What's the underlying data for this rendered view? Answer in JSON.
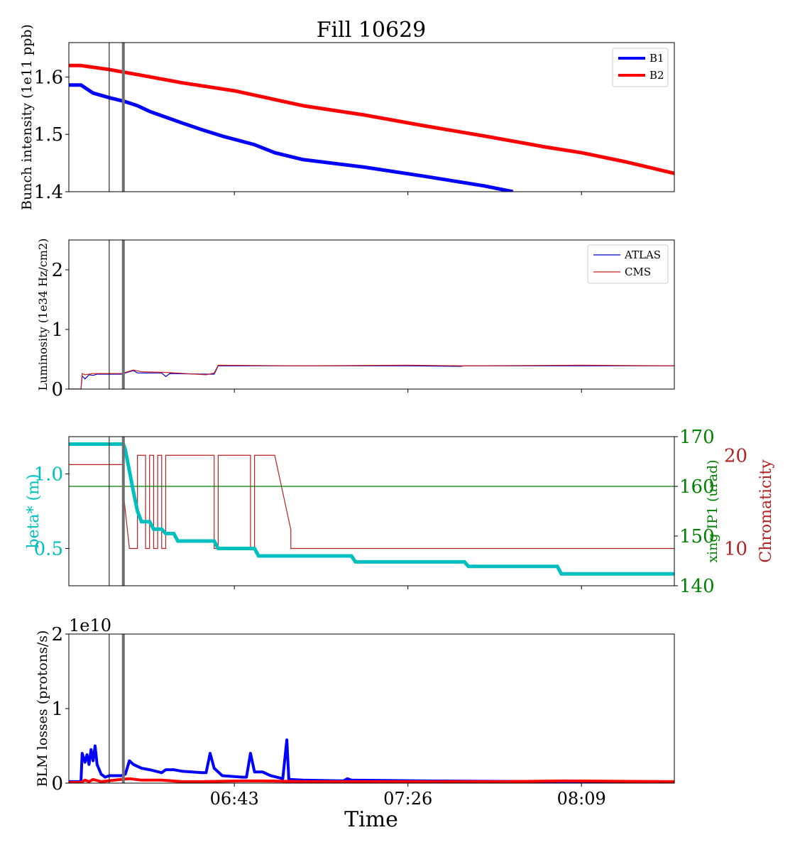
{
  "figure_title": "Fill 10629",
  "x_axis": {
    "label": "Time",
    "ticks": [
      "06:43",
      "07:26",
      "08:09"
    ]
  },
  "markers": {
    "thin_line_time": "06:12",
    "thick_line_time": "06:15.5"
  },
  "colors": {
    "b1": "#0000ff",
    "b2": "#ff0000",
    "atlas": "#0000cc",
    "cms": "#cc2222",
    "beta": "#00bfbf",
    "xing": "#008000",
    "chroma": "#b22222",
    "marker_thick": "#707070"
  },
  "chart_data": [
    {
      "type": "line",
      "name": "bunch_intensity",
      "ylabel": "Bunch intensity (1e11 ppb)",
      "ylim": [
        1.4,
        1.66
      ],
      "yticks": [
        1.4,
        1.5,
        1.6
      ],
      "legend": {
        "placement": "top-right",
        "entries": [
          "B1",
          "B2"
        ]
      },
      "series": [
        {
          "name": "B1",
          "points": [
            [
              "06:02",
              1.586
            ],
            [
              "06:05",
              1.586
            ],
            [
              "06:08",
              1.572
            ],
            [
              "06:12",
              1.564
            ],
            [
              "06:16",
              1.557
            ],
            [
              "06:19",
              1.55
            ],
            [
              "06:22",
              1.54
            ],
            [
              "06:26",
              1.53
            ],
            [
              "06:30",
              1.52
            ],
            [
              "06:35",
              1.508
            ],
            [
              "06:40",
              1.497
            ],
            [
              "06:48",
              1.482
            ],
            [
              "06:53",
              1.468
            ],
            [
              "07:00",
              1.456
            ],
            [
              "07:15",
              1.443
            ],
            [
              "07:30",
              1.427
            ],
            [
              "07:45",
              1.41
            ],
            [
              "07:52",
              1.4
            ]
          ]
        },
        {
          "name": "B2",
          "points": [
            [
              "06:02",
              1.62
            ],
            [
              "06:05",
              1.62
            ],
            [
              "06:12",
              1.613
            ],
            [
              "06:20",
              1.603
            ],
            [
              "06:30",
              1.59
            ],
            [
              "06:43",
              1.576
            ],
            [
              "07:00",
              1.55
            ],
            [
              "07:15",
              1.534
            ],
            [
              "07:30",
              1.515
            ],
            [
              "07:45",
              1.497
            ],
            [
              "08:00",
              1.478
            ],
            [
              "08:09",
              1.468
            ],
            [
              "08:20",
              1.452
            ],
            [
              "08:32",
              1.432
            ]
          ]
        }
      ]
    },
    {
      "type": "line",
      "name": "luminosity",
      "ylabel": "Luminosity (1e34 Hz/cm2)",
      "ylim": [
        0,
        2.5
      ],
      "yticks": [
        0,
        1,
        2
      ],
      "legend": {
        "placement": "top-right",
        "entries": [
          "ATLAS",
          "CMS"
        ]
      },
      "series": [
        {
          "name": "ATLAS",
          "points": [
            [
              "06:02",
              0.0
            ],
            [
              "06:05",
              0.0
            ],
            [
              "06:05.3",
              0.22
            ],
            [
              "06:06",
              0.17
            ],
            [
              "06:07",
              0.24
            ],
            [
              "06:08",
              0.23
            ],
            [
              "06:09",
              0.25
            ],
            [
              "06:15",
              0.25
            ],
            [
              "06:16",
              0.27
            ],
            [
              "06:18",
              0.31
            ],
            [
              "06:19",
              0.27
            ],
            [
              "06:25",
              0.27
            ],
            [
              "06:26",
              0.21
            ],
            [
              "06:27",
              0.26
            ],
            [
              "06:36",
              0.25
            ],
            [
              "06:38",
              0.25
            ],
            [
              "06:39",
              0.39
            ],
            [
              "06:45",
              0.39
            ],
            [
              "07:00",
              0.39
            ],
            [
              "07:26",
              0.39
            ],
            [
              "07:39",
              0.38
            ],
            [
              "07:40",
              0.39
            ],
            [
              "08:09",
              0.39
            ],
            [
              "08:32",
              0.39
            ]
          ]
        },
        {
          "name": "CMS",
          "points": [
            [
              "06:02",
              0.0
            ],
            [
              "06:05",
              0.0
            ],
            [
              "06:05.3",
              0.26
            ],
            [
              "06:06",
              0.24
            ],
            [
              "06:07",
              0.25
            ],
            [
              "06:08",
              0.26
            ],
            [
              "06:15",
              0.26
            ],
            [
              "06:18",
              0.32
            ],
            [
              "06:20",
              0.29
            ],
            [
              "06:26",
              0.28
            ],
            [
              "06:36",
              0.24
            ],
            [
              "06:38",
              0.27
            ],
            [
              "06:39",
              0.4
            ],
            [
              "07:00",
              0.39
            ],
            [
              "07:26",
              0.4
            ],
            [
              "07:40",
              0.39
            ],
            [
              "08:09",
              0.4
            ],
            [
              "08:32",
              0.39
            ]
          ]
        }
      ]
    },
    {
      "type": "line",
      "name": "optics",
      "ylabel_left": "beta* (m)",
      "ylabel_right_inner": "xing IP1 (urad)",
      "ylabel_right_outer": "Chromaticity",
      "ylim_left": [
        0.25,
        1.25
      ],
      "yticks_left": [
        0.5,
        1.0
      ],
      "ylim_xing": [
        140,
        170
      ],
      "yticks_xing": [
        140,
        150,
        160,
        170
      ],
      "ylim_chroma": [
        6,
        22
      ],
      "yticks_chroma": [
        10,
        20
      ],
      "series": [
        {
          "name": "beta*",
          "axis": "left",
          "points": [
            [
              "06:02",
              1.2
            ],
            [
              "06:15.5",
              1.2
            ],
            [
              "06:16",
              1.16
            ],
            [
              "06:17",
              1.02
            ],
            [
              "06:18",
              0.88
            ],
            [
              "06:19",
              0.75
            ],
            [
              "06:20",
              0.68
            ],
            [
              "06:22",
              0.68
            ],
            [
              "06:23",
              0.63
            ],
            [
              "06:25",
              0.63
            ],
            [
              "06:26",
              0.6
            ],
            [
              "06:28",
              0.6
            ],
            [
              "06:29",
              0.55
            ],
            [
              "06:38",
              0.55
            ],
            [
              "06:39",
              0.5
            ],
            [
              "06:48",
              0.5
            ],
            [
              "06:49",
              0.45
            ],
            [
              "07:12",
              0.45
            ],
            [
              "07:13",
              0.41
            ],
            [
              "07:40",
              0.41
            ],
            [
              "07:41",
              0.38
            ],
            [
              "08:03",
              0.38
            ],
            [
              "08:04",
              0.33
            ],
            [
              "08:32",
              0.33
            ]
          ]
        },
        {
          "name": "xing IP1",
          "axis": "xing",
          "points": [
            [
              "06:02",
              160
            ],
            [
              "08:32",
              160
            ]
          ]
        },
        {
          "name": "Chromaticity",
          "axis": "chroma",
          "step": true,
          "points": [
            [
              "06:02",
              19
            ],
            [
              "06:15.5",
              19
            ],
            [
              "06:15.5",
              16
            ],
            [
              "06:17",
              10
            ],
            [
              "06:19",
              10
            ],
            [
              "06:19",
              20
            ],
            [
              "06:21",
              20
            ],
            [
              "06:21",
              10
            ],
            [
              "06:22",
              10
            ],
            [
              "06:22",
              20
            ],
            [
              "06:23",
              20
            ],
            [
              "06:23",
              10
            ],
            [
              "06:24",
              10
            ],
            [
              "06:24",
              20
            ],
            [
              "06:25",
              20
            ],
            [
              "06:25",
              10
            ],
            [
              "06:26",
              10
            ],
            [
              "06:26",
              20
            ],
            [
              "06:38",
              20
            ],
            [
              "06:38",
              10
            ],
            [
              "06:39",
              10
            ],
            [
              "06:39",
              20
            ],
            [
              "06:47",
              20
            ],
            [
              "06:47",
              10
            ],
            [
              "06:48",
              10
            ],
            [
              "06:48",
              20
            ],
            [
              "06:53",
              20
            ],
            [
              "06:54",
              18
            ],
            [
              "06:55",
              16
            ],
            [
              "06:56",
              14
            ],
            [
              "06:57",
              12
            ],
            [
              "06:57",
              10
            ],
            [
              "08:32",
              10
            ]
          ]
        }
      ]
    },
    {
      "type": "line",
      "name": "blm_losses",
      "ylabel": "BLM losses (protons/s)",
      "offset_text": "1e10",
      "ylim": [
        0,
        2
      ],
      "yticks": [
        0,
        1,
        2
      ],
      "series": [
        {
          "name": "B1",
          "points": [
            [
              "06:02",
              0.02
            ],
            [
              "06:05",
              0.02
            ],
            [
              "06:05.3",
              0.4
            ],
            [
              "06:06",
              0.28
            ],
            [
              "06:06.5",
              0.38
            ],
            [
              "06:07",
              0.25
            ],
            [
              "06:07.5",
              0.45
            ],
            [
              "06:08",
              0.3
            ],
            [
              "06:08.5",
              0.5
            ],
            [
              "06:09",
              0.25
            ],
            [
              "06:10",
              0.12
            ],
            [
              "06:11",
              0.08
            ],
            [
              "06:12",
              0.1
            ],
            [
              "06:15",
              0.1
            ],
            [
              "06:16",
              0.12
            ],
            [
              "06:17",
              0.3
            ],
            [
              "06:18",
              0.25
            ],
            [
              "06:20",
              0.2
            ],
            [
              "06:22",
              0.18
            ],
            [
              "06:25",
              0.14
            ],
            [
              "06:26",
              0.18
            ],
            [
              "06:28",
              0.18
            ],
            [
              "06:30",
              0.16
            ],
            [
              "06:35",
              0.14
            ],
            [
              "06:36",
              0.14
            ],
            [
              "06:37",
              0.4
            ],
            [
              "06:38",
              0.2
            ],
            [
              "06:40",
              0.1
            ],
            [
              "06:45",
              0.08
            ],
            [
              "06:46",
              0.08
            ],
            [
              "06:47",
              0.4
            ],
            [
              "06:48",
              0.15
            ],
            [
              "06:50",
              0.15
            ],
            [
              "06:52",
              0.1
            ],
            [
              "06:55",
              0.06
            ],
            [
              "06:56",
              0.58
            ],
            [
              "06:56.5",
              0.05
            ],
            [
              "07:00",
              0.04
            ],
            [
              "07:10",
              0.03
            ],
            [
              "07:11",
              0.06
            ],
            [
              "07:12",
              0.04
            ],
            [
              "07:30",
              0.03
            ],
            [
              "08:00",
              0.02
            ],
            [
              "08:32",
              0.01
            ]
          ]
        },
        {
          "name": "B2",
          "points": [
            [
              "06:02",
              0.01
            ],
            [
              "06:05",
              0.01
            ],
            [
              "06:06",
              0.04
            ],
            [
              "06:07",
              0.02
            ],
            [
              "06:08",
              0.05
            ],
            [
              "06:10",
              0.02
            ],
            [
              "06:15",
              0.05
            ],
            [
              "06:17",
              0.06
            ],
            [
              "06:20",
              0.04
            ],
            [
              "06:25",
              0.04
            ],
            [
              "06:30",
              0.02
            ],
            [
              "06:35",
              0.02
            ],
            [
              "06:45",
              0.03
            ],
            [
              "06:50",
              0.03
            ],
            [
              "07:00",
              0.02
            ],
            [
              "07:30",
              0.02
            ],
            [
              "07:50",
              0.02
            ],
            [
              "08:05",
              0.03
            ],
            [
              "08:32",
              0.02
            ]
          ]
        }
      ]
    }
  ]
}
